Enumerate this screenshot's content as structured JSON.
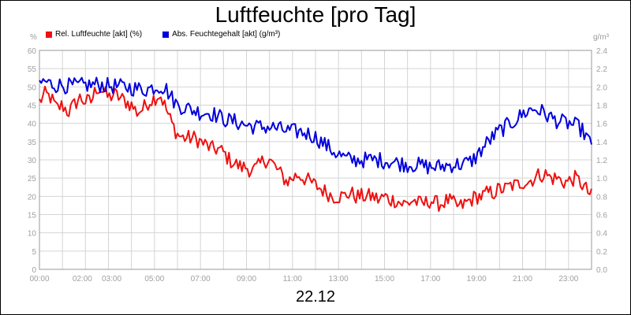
{
  "chart_data": {
    "type": "line",
    "title": "Luftfeuchte [pro Tag]",
    "xlabel": "22.12",
    "ylabel_left": "%",
    "ylabel_right": "g/m³",
    "xlim_hours": [
      0,
      24
    ],
    "ylim_left": [
      0,
      60
    ],
    "ylim_right": [
      0,
      2.4
    ],
    "grid": true,
    "legend_position": "top-left",
    "x_tick_labels": [
      "00:00",
      "02:00",
      "03:00",
      "05:00",
      "07:00",
      "09:00",
      "11:00",
      "13:00",
      "15:00",
      "17:00",
      "19:00",
      "21:00",
      "23:00"
    ],
    "y_left_tick_labels": [
      "0",
      "5",
      "10",
      "15",
      "20",
      "25",
      "30",
      "35",
      "40",
      "45",
      "50",
      "55",
      "60"
    ],
    "y_right_tick_labels": [
      "0.0",
      "0.2",
      "0.4",
      "0.6",
      "0.8",
      "1.0",
      "1.2",
      "1.4",
      "1.6",
      "1.8",
      "2.0",
      "2.2",
      "2.4"
    ],
    "series": [
      {
        "name": "Rel. Luftfeuchte [akt] (%)",
        "axis": "left",
        "color": "#ee1111",
        "x": [
          0.0,
          0.25,
          0.5,
          0.75,
          1.0,
          1.25,
          1.5,
          1.75,
          2.0,
          2.25,
          2.5,
          2.75,
          3.0,
          3.25,
          3.5,
          3.75,
          4.0,
          4.25,
          4.5,
          4.75,
          5.0,
          5.25,
          5.5,
          5.75,
          6.0,
          6.25,
          6.5,
          6.75,
          7.0,
          7.25,
          7.5,
          7.75,
          8.0,
          8.25,
          8.5,
          8.75,
          9.0,
          9.25,
          9.5,
          9.75,
          10.0,
          10.25,
          10.5,
          10.75,
          11.0,
          11.25,
          11.5,
          11.75,
          12.0,
          12.25,
          12.5,
          12.75,
          13.0,
          13.25,
          13.5,
          13.75,
          14.0,
          14.25,
          14.5,
          14.75,
          15.0,
          15.25,
          15.5,
          15.75,
          16.0,
          16.25,
          16.5,
          16.75,
          17.0,
          17.25,
          17.5,
          17.75,
          18.0,
          18.25,
          18.5,
          18.75,
          19.0,
          19.25,
          19.5,
          19.75,
          20.0,
          20.25,
          20.5,
          20.75,
          21.0,
          21.25,
          21.5,
          21.75,
          22.0,
          22.25,
          22.5,
          22.75,
          23.0,
          23.25,
          23.5,
          23.75,
          24.0
        ],
        "values": [
          46,
          48,
          47,
          44,
          45,
          43,
          45,
          47,
          46,
          46,
          50,
          49,
          47,
          48,
          47,
          46,
          45,
          43,
          44,
          46,
          47,
          48,
          44,
          40,
          37,
          36,
          36,
          36,
          35,
          34,
          33,
          33,
          32,
          30,
          29,
          28,
          28,
          27,
          28,
          30,
          30,
          28,
          26,
          24,
          25,
          26,
          25,
          24,
          23,
          22,
          21,
          20,
          20,
          20,
          21,
          20,
          20,
          20,
          20,
          19,
          20,
          19,
          19,
          18,
          18,
          19,
          18,
          18,
          19,
          18,
          18,
          19,
          18,
          17,
          18,
          19,
          20,
          20,
          21,
          21,
          22,
          22,
          23,
          23,
          24,
          24,
          25,
          26,
          26,
          25,
          25,
          24,
          24,
          25,
          24,
          22,
          20
        ],
        "noise": 2.2
      },
      {
        "name": "Abs. Feuchtegehalt [akt] (g/m³)",
        "axis": "right",
        "color": "#0000dd",
        "x": [
          0.0,
          0.25,
          0.5,
          0.75,
          1.0,
          1.25,
          1.5,
          1.75,
          2.0,
          2.25,
          2.5,
          2.75,
          3.0,
          3.25,
          3.5,
          3.75,
          4.0,
          4.25,
          4.5,
          4.75,
          5.0,
          5.25,
          5.5,
          5.75,
          6.0,
          6.25,
          6.5,
          6.75,
          7.0,
          7.25,
          7.5,
          7.75,
          8.0,
          8.25,
          8.5,
          8.75,
          9.0,
          9.25,
          9.5,
          9.75,
          10.0,
          10.25,
          10.5,
          10.75,
          11.0,
          11.25,
          11.5,
          11.75,
          12.0,
          12.25,
          12.5,
          12.75,
          13.0,
          13.25,
          13.5,
          13.75,
          14.0,
          14.25,
          14.5,
          14.75,
          15.0,
          15.25,
          15.5,
          15.75,
          16.0,
          16.25,
          16.5,
          16.75,
          17.0,
          17.25,
          17.5,
          17.75,
          18.0,
          18.25,
          18.5,
          18.75,
          19.0,
          19.25,
          19.5,
          19.75,
          20.0,
          20.25,
          20.5,
          20.75,
          21.0,
          21.25,
          21.5,
          21.75,
          22.0,
          22.25,
          22.5,
          22.75,
          23.0,
          23.25,
          23.5,
          23.75,
          24.0
        ],
        "values": [
          2.04,
          2.06,
          2.03,
          2.02,
          2.02,
          2.01,
          2.01,
          2.01,
          2.02,
          2.02,
          2.03,
          2.02,
          2.01,
          2.01,
          2.0,
          2.0,
          1.99,
          1.98,
          1.97,
          1.98,
          2.0,
          2.01,
          1.98,
          1.88,
          1.8,
          1.78,
          1.76,
          1.74,
          1.72,
          1.72,
          1.71,
          1.68,
          1.65,
          1.63,
          1.62,
          1.6,
          1.58,
          1.57,
          1.56,
          1.56,
          1.56,
          1.55,
          1.53,
          1.52,
          1.51,
          1.51,
          1.5,
          1.48,
          1.45,
          1.4,
          1.35,
          1.3,
          1.26,
          1.22,
          1.2,
          1.2,
          1.2,
          1.2,
          1.2,
          1.2,
          1.19,
          1.18,
          1.17,
          1.16,
          1.15,
          1.15,
          1.14,
          1.13,
          1.12,
          1.12,
          1.13,
          1.14,
          1.15,
          1.15,
          1.16,
          1.18,
          1.24,
          1.32,
          1.4,
          1.46,
          1.52,
          1.56,
          1.6,
          1.65,
          1.7,
          1.74,
          1.76,
          1.74,
          1.7,
          1.66,
          1.63,
          1.61,
          1.6,
          1.58,
          1.55,
          1.47,
          1.34
        ],
        "noise": 0.09
      }
    ]
  }
}
